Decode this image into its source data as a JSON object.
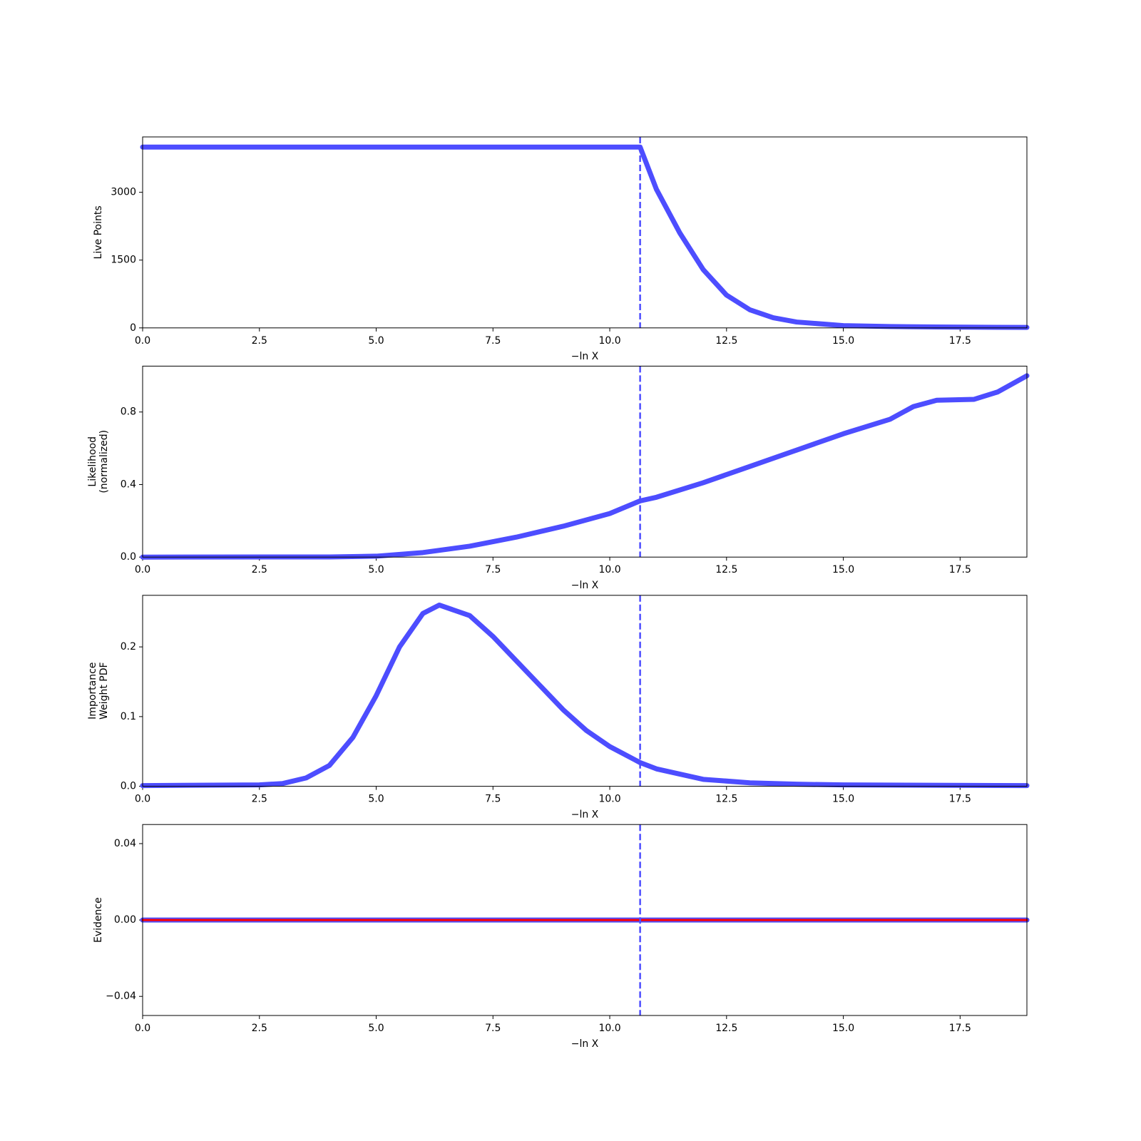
{
  "chart_data": [
    {
      "type": "line",
      "ylabel": [
        "Live Points"
      ],
      "xlabel": "−ln X",
      "xlim": [
        0,
        18.93
      ],
      "ylim": [
        0,
        4225
      ],
      "xticks": [
        {
          "value": 0,
          "label": "0.0"
        },
        2.5,
        {
          "value": 5,
          "label": "5.0"
        },
        7.5,
        {
          "value": 10,
          "label": "10.0"
        },
        12.5,
        {
          "value": 15,
          "label": "15.0"
        },
        17.5
      ],
      "yticks": [
        0,
        1500,
        3000
      ],
      "vline": 10.65,
      "vline_color": "#4d4dff",
      "x": [
        0,
        10.6,
        10.65,
        11,
        11.5,
        12,
        12.5,
        13,
        13.5,
        14,
        15,
        16,
        17,
        18.93
      ],
      "series": [
        {
          "color": "#4d4dff",
          "values": [
            4000,
            4000,
            4000,
            3064,
            2100,
            1290,
            725,
            400,
            225,
            130,
            50,
            30,
            20,
            10
          ]
        }
      ]
    },
    {
      "type": "line",
      "ylabel": [
        "Likelihood",
        "(normalized)"
      ],
      "xlabel": "−ln X",
      "xlim": [
        0,
        18.93
      ],
      "ylim": [
        0,
        1.053
      ],
      "xticks": [
        {
          "value": 0,
          "label": "0.0"
        },
        2.5,
        {
          "value": 5,
          "label": "5.0"
        },
        7.5,
        {
          "value": 10,
          "label": "10.0"
        },
        12.5,
        {
          "value": 15,
          "label": "15.0"
        },
        17.5
      ],
      "yticks": [
        {
          "value": 0,
          "label": "0.0"
        },
        0.4,
        0.8
      ],
      "vline": 10.65,
      "vline_color": "#4d4dff",
      "x": [
        0,
        4,
        5,
        6,
        7,
        8,
        9,
        10,
        10.65,
        11,
        12,
        13,
        14,
        15,
        16,
        16.5,
        17,
        17.8,
        18.3,
        18.93
      ],
      "series": [
        {
          "color": "#4d4dff",
          "values": [
            0,
            0.001,
            0.005,
            0.025,
            0.06,
            0.11,
            0.17,
            0.24,
            0.31,
            0.33,
            0.41,
            0.5,
            0.59,
            0.68,
            0.76,
            0.83,
            0.865,
            0.87,
            0.91,
            1.0
          ]
        }
      ]
    },
    {
      "type": "line",
      "ylabel": [
        "Importance",
        "Weight PDF"
      ],
      "xlabel": "−ln X",
      "xlim": [
        0,
        18.93
      ],
      "ylim": [
        0,
        0.274
      ],
      "xticks": [
        {
          "value": 0,
          "label": "0.0"
        },
        2.5,
        {
          "value": 5,
          "label": "5.0"
        },
        7.5,
        {
          "value": 10,
          "label": "10.0"
        },
        12.5,
        {
          "value": 15,
          "label": "15.0"
        },
        17.5
      ],
      "yticks": [
        {
          "value": 0,
          "label": "0.0"
        },
        0.1,
        0.2
      ],
      "vline": 10.65,
      "vline_color": "#4d4dff",
      "x": [
        0,
        2.5,
        3,
        3.5,
        4,
        4.5,
        5,
        5.5,
        6,
        6.35,
        7,
        7.5,
        8,
        8.5,
        9,
        9.5,
        10,
        10.65,
        11,
        12,
        13,
        14,
        15,
        18.93
      ],
      "series": [
        {
          "color": "#4d4dff",
          "values": [
            0.001,
            0.002,
            0.004,
            0.012,
            0.03,
            0.07,
            0.13,
            0.2,
            0.248,
            0.26,
            0.245,
            0.215,
            0.18,
            0.145,
            0.11,
            0.08,
            0.057,
            0.034,
            0.025,
            0.01,
            0.005,
            0.003,
            0.002,
            0.001
          ]
        }
      ]
    },
    {
      "type": "line",
      "ylabel": [
        "Evidence"
      ],
      "xlabel": "−ln X",
      "xlim": [
        0,
        18.93
      ],
      "ylim": [
        -0.05,
        0.05
      ],
      "xticks": [
        {
          "value": 0,
          "label": "0.0"
        },
        2.5,
        {
          "value": 5,
          "label": "5.0"
        },
        7.5,
        {
          "value": 10,
          "label": "10.0"
        },
        12.5,
        {
          "value": 15,
          "label": "15.0"
        },
        17.5
      ],
      "yticks": [
        {
          "value": -0.04,
          "label": "−0.04"
        },
        {
          "value": 0,
          "label": "0.00"
        },
        {
          "value": 0.04,
          "label": "0.04"
        }
      ],
      "vline": 10.65,
      "vline_color": "#4d4dff",
      "x": [
        0,
        18.93
      ],
      "series": [
        {
          "color": "#4d4dff",
          "values": [
            0,
            0
          ]
        },
        {
          "color": "#ff0000",
          "values": [
            0,
            0
          ]
        }
      ]
    }
  ]
}
